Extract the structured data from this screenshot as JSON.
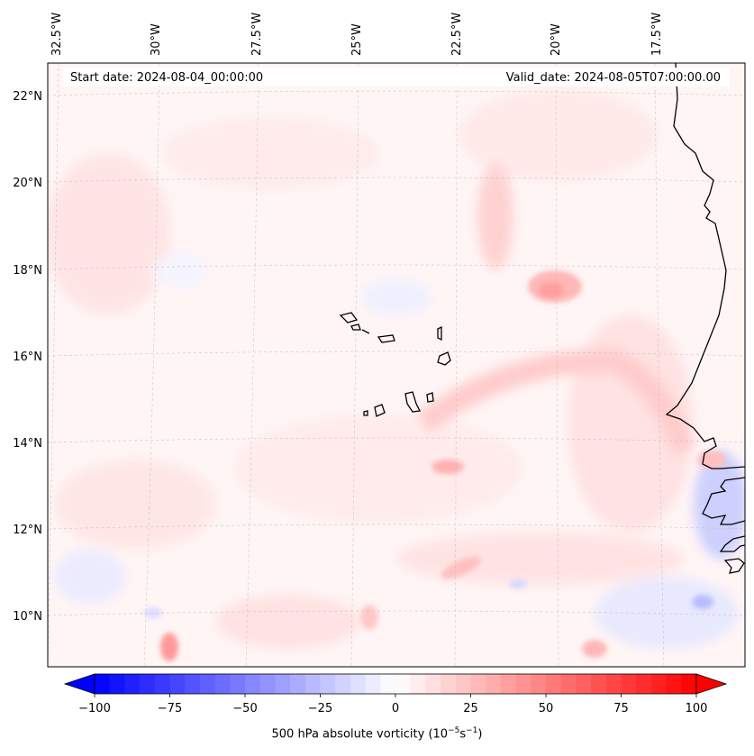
{
  "header": {
    "start_date": "Start date: 2024-08-04_00:00:00",
    "valid_date": "Valid_date: 2024-08-05T07:00:00.00"
  },
  "lon_labels": [
    "32.5°W",
    "30°W",
    "27.5°W",
    "25°W",
    "22.5°W",
    "20°W",
    "17.5°W"
  ],
  "lat_labels": [
    "22°N",
    "20°N",
    "18°N",
    "16°N",
    "14°N",
    "12°N",
    "10°N"
  ],
  "colorbar": {
    "ticks": [
      "−100",
      "−75",
      "−50",
      "−25",
      "0",
      "25",
      "50",
      "75",
      "100"
    ],
    "label_main": "500 hPa absolute vorticity (10",
    "label_sup1": "−5",
    "label_mid": "s",
    "label_sup2": "−1",
    "label_end": ")",
    "neg_color": "#0000ff",
    "pos_color": "#ff0000"
  },
  "field_features": [
    {
      "name": "vorticity-max-north",
      "lon": -19.9,
      "lat": 17.7,
      "value": 45
    },
    {
      "name": "vorticity-max-central",
      "lon": -22.5,
      "lat": 13.6,
      "value": 40
    },
    {
      "name": "vorticity-max-southwest",
      "lon": -30.0,
      "lat": 9.3,
      "value": 50
    },
    {
      "name": "vorticity-min-southeast",
      "lon": -17.0,
      "lat": 9.8,
      "value": -30
    }
  ]
}
